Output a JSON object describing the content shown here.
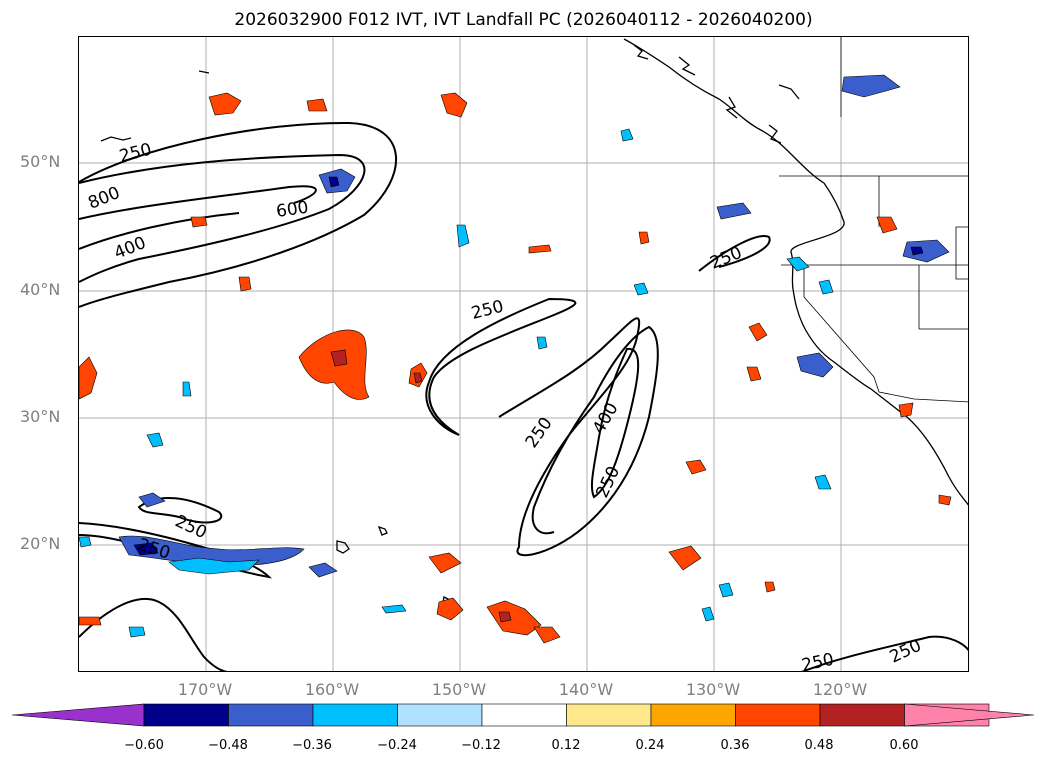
{
  "title": "2026032900 F012 IVT, IVT Landfall PC (2026040112 - 2026040200)",
  "map": {
    "lat_labels": [
      "50°N",
      "40°N",
      "30°N",
      "20°N"
    ],
    "lon_labels": [
      "170°W",
      "160°W",
      "150°W",
      "140°W",
      "130°W",
      "120°W"
    ],
    "contour_labels": [
      "250",
      "800",
      "600",
      "400",
      "250",
      "250",
      "400",
      "250",
      "250",
      "250",
      "250",
      "250",
      "250"
    ]
  },
  "colorbar": {
    "ticks": [
      "−0.60",
      "−0.48",
      "−0.36",
      "−0.24",
      "−0.12",
      "0.12",
      "0.24",
      "0.36",
      "0.48",
      "0.60"
    ],
    "colors": {
      "under": "#9932cc",
      "bins": [
        "#00008b",
        "#3a5fcd",
        "#00bfff",
        "#b0e2ff",
        "#ffffff",
        "#ffe88c",
        "#ffa500",
        "#ff4500",
        "#b22222",
        "#ff82ab"
      ],
      "over": "#ff82ab"
    }
  }
}
